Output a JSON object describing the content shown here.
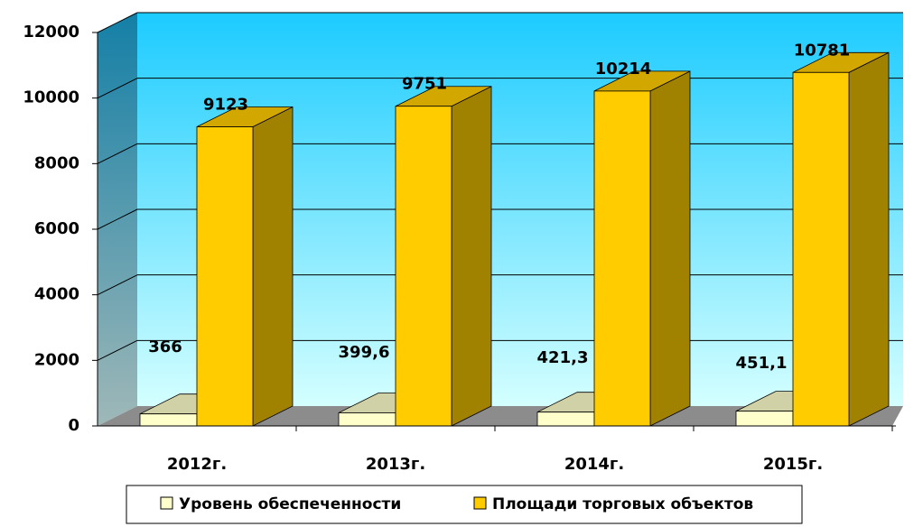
{
  "chart_data": {
    "type": "bar3d",
    "categories": [
      "2012г.",
      "2013г.",
      "2014г.",
      "2015г."
    ],
    "series": [
      {
        "name": "Уровень обеспеченности",
        "color": "#ffffcc",
        "values": [
          366,
          399.6,
          421.3,
          451.1
        ],
        "value_labels": [
          "366",
          "399,6",
          "421,3",
          "451,1"
        ]
      },
      {
        "name": "Площади торговых объектов",
        "color": "#ffcc00",
        "values": [
          9123,
          9751,
          10214,
          10781
        ]
      }
    ],
    "ylim": [
      0,
      12000
    ],
    "yticks": [
      0,
      2000,
      4000,
      6000,
      8000,
      10000,
      12000
    ],
    "grid": true,
    "legend": "bottom"
  }
}
